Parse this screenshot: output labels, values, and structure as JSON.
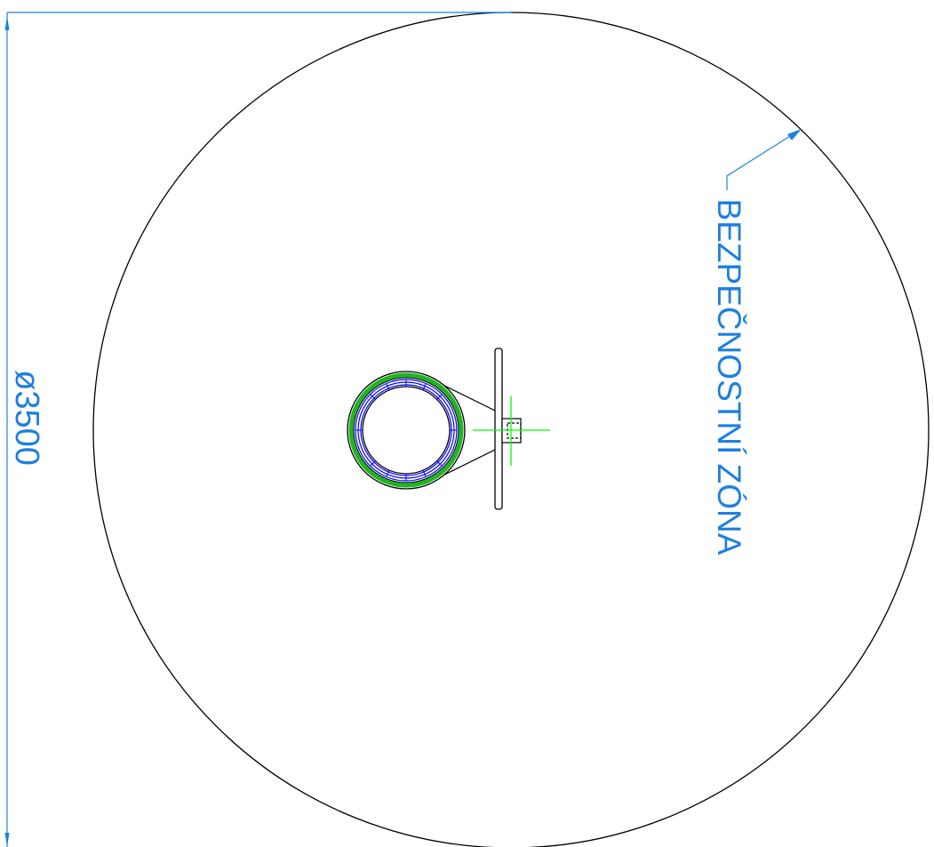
{
  "drawing": {
    "dimension": {
      "text": "ø3500"
    },
    "safety_zone": {
      "label": "BEZPEČNOSTNÍ ZÓNA"
    },
    "colors": {
      "outline": "#000000",
      "dimension": "#1e7fe0",
      "inner_ring": "#0000ff",
      "insulation": "#1fb51f",
      "centerline": "#00ff00"
    }
  }
}
